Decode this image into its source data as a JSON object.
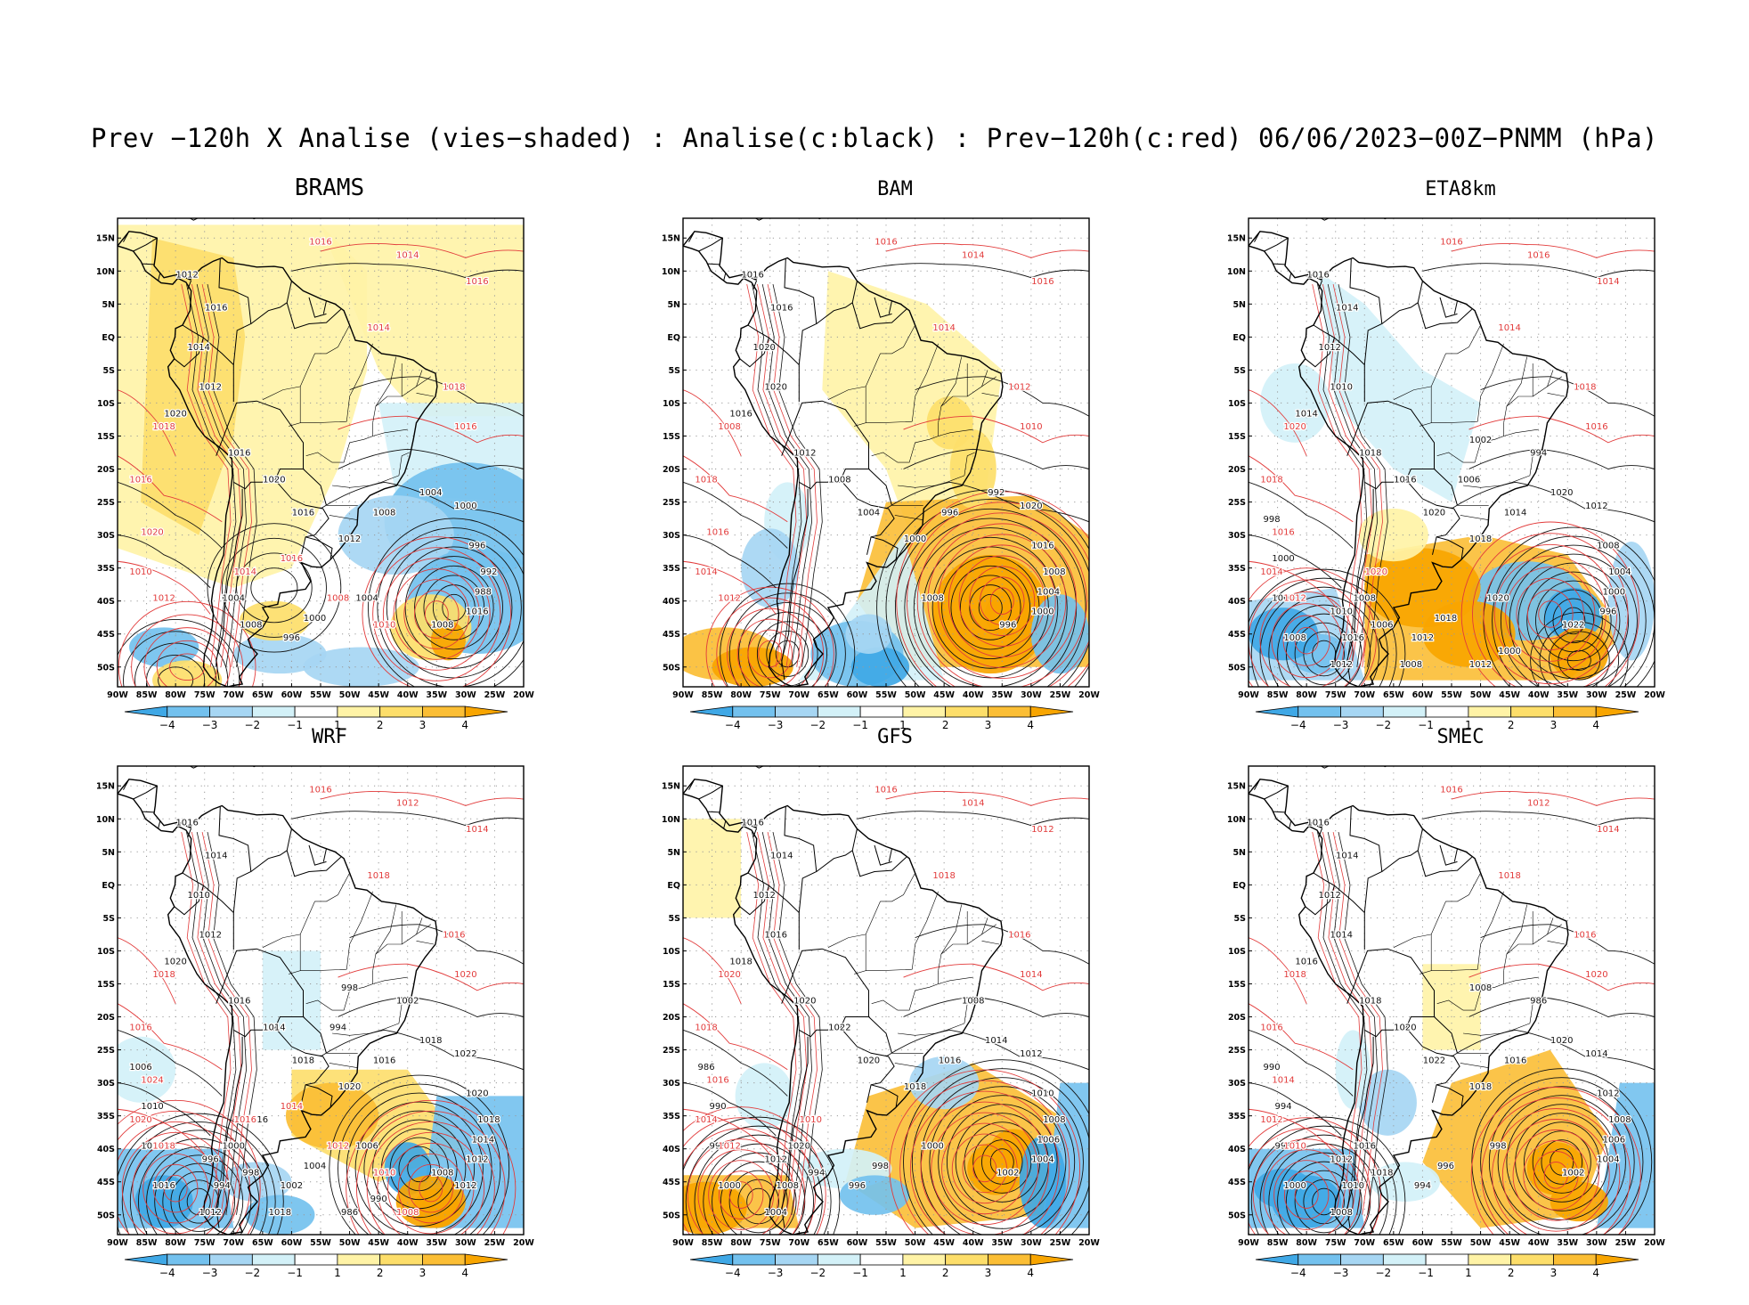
{
  "title": "Prev −120h X Analise (vies−shaded) : Analise(c:black) : Prev−120h(c:red) 06/06/2023−00Z−PNMM (hPa)",
  "lat_labels": [
    "15N",
    "10N",
    "5N",
    "EQ",
    "5S",
    "10S",
    "15S",
    "20S",
    "25S",
    "30S",
    "35S",
    "40S",
    "45S",
    "50S"
  ],
  "lon_labels": [
    "90W",
    "85W",
    "80W",
    "75W",
    "70W",
    "65W",
    "60W",
    "55W",
    "50W",
    "45W",
    "40W",
    "35W",
    "30W",
    "25W",
    "20W"
  ],
  "colorbar": {
    "labels": [
      "−4",
      "−3",
      "−2",
      "−1",
      "1",
      "2",
      "3",
      "4"
    ],
    "colors": [
      "#3fa8e6",
      "#73c1ee",
      "#a6d6f3",
      "#d3f1f8",
      "#ffffff",
      "#fff3a6",
      "#fdde6a",
      "#fbbe35",
      "#f8a500"
    ]
  },
  "colors": {
    "analysis_contour": "#111111",
    "forecast_contour": "#e23b3b",
    "coast": "#000000"
  },
  "panels": [
    {
      "name": "BRAMS",
      "bias": "brams",
      "black_labels": [
        "1012",
        "1016",
        "1014",
        "1012",
        "1020",
        "1016",
        "1020",
        "1016",
        "1012",
        "1008",
        "1004",
        "1000",
        "996",
        "992",
        "988",
        "1016",
        "1008",
        "1004",
        "1000",
        "996",
        "1008",
        "1004"
      ],
      "red_labels": [
        "1016",
        "1014",
        "1016",
        "1014",
        "1018",
        "1016",
        "1018",
        "1016",
        "1020",
        "1010",
        "1012",
        "1014",
        "1016",
        "1008",
        "1010"
      ]
    },
    {
      "name": "BAM",
      "bias": "bam",
      "black_labels": [
        "1016",
        "1016",
        "1020",
        "1020",
        "1016",
        "1012",
        "1008",
        "1004",
        "1000",
        "996",
        "992",
        "1020",
        "1016",
        "1008",
        "1004",
        "1000",
        "996",
        "1008"
      ],
      "red_labels": [
        "1016",
        "1014",
        "1016",
        "1014",
        "1012",
        "1010",
        "1008",
        "1018",
        "1016",
        "1014",
        "1012"
      ]
    },
    {
      "name": "ETA8km",
      "bias": "eta",
      "black_labels": [
        "1016",
        "1014",
        "1012",
        "1010",
        "1014",
        "1018",
        "1016",
        "1020",
        "1018",
        "1014",
        "1020",
        "1012",
        "1008",
        "1004",
        "1000",
        "996",
        "1022",
        "1020",
        "1018",
        "1012",
        "1006",
        "1008",
        "1010",
        "1016",
        "1012",
        "1008",
        "1004",
        "1000",
        "998",
        "994",
        "1002",
        "1006",
        "1000",
        "1012",
        "1008"
      ],
      "red_labels": [
        "1016",
        "1016",
        "1014",
        "1014",
        "1018",
        "1016",
        "1020",
        "1018",
        "1016",
        "1014",
        "1012",
        "1020"
      ]
    },
    {
      "name": "WRF",
      "bias": "wrf",
      "black_labels": [
        "1016",
        "1014",
        "1010",
        "1012",
        "1020",
        "1016",
        "1014",
        "1018",
        "1020",
        "1016",
        "1018",
        "1022",
        "1020",
        "1018",
        "1014",
        "1012",
        "1008",
        "1006",
        "1004",
        "1002",
        "998",
        "1000",
        "996",
        "994",
        "1012",
        "1016",
        "1022",
        "1010",
        "1006",
        "1002",
        "998",
        "994",
        "990",
        "986",
        "1018",
        "1016",
        "1012"
      ],
      "red_labels": [
        "1016",
        "1012",
        "1014",
        "1018",
        "1016",
        "1020",
        "1018",
        "1016",
        "1024",
        "1020",
        "1018",
        "1016",
        "1014",
        "1012",
        "1010",
        "1008"
      ]
    },
    {
      "name": "GFS",
      "bias": "gfs",
      "black_labels": [
        "1016",
        "1014",
        "1012",
        "1016",
        "1018",
        "1020",
        "1022",
        "1020",
        "1018",
        "1016",
        "1014",
        "1012",
        "1010",
        "1008",
        "1006",
        "1004",
        "1002",
        "1000",
        "998",
        "996",
        "994",
        "1020",
        "1012",
        "1008",
        "1004",
        "1000",
        "996",
        "990",
        "986",
        "1008"
      ],
      "red_labels": [
        "1016",
        "1014",
        "1012",
        "1018",
        "1016",
        "1014",
        "1020",
        "1018",
        "1016",
        "1014",
        "1012",
        "1010"
      ]
    },
    {
      "name": "SMEC",
      "bias": "smec",
      "black_labels": [
        "1016",
        "1014",
        "1012",
        "1014",
        "1016",
        "1018",
        "1020",
        "1022",
        "1018",
        "1016",
        "1020",
        "1014",
        "1012",
        "1008",
        "1006",
        "1004",
        "1002",
        "998",
        "996",
        "994",
        "1018",
        "1016",
        "1012",
        "1010",
        "1008",
        "1000",
        "996",
        "994",
        "990",
        "986",
        "1008"
      ],
      "red_labels": [
        "1016",
        "1012",
        "1014",
        "1018",
        "1016",
        "1020",
        "1018",
        "1016",
        "1014",
        "1012",
        "1010"
      ]
    }
  ]
}
